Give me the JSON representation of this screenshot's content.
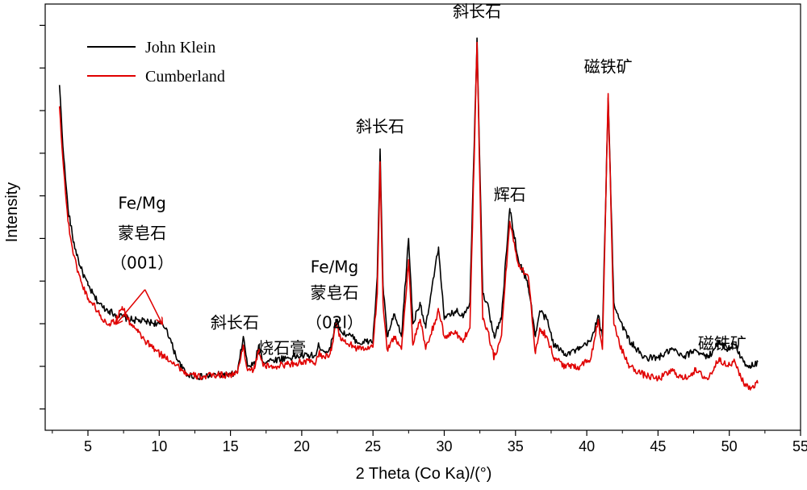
{
  "chart_data": {
    "type": "line",
    "xlabel": "2 Theta (Co Ka)/(°)",
    "ylabel": "Intensity",
    "xlim": [
      2,
      55
    ],
    "ylim": [
      0,
      100
    ],
    "x_ticks": [
      5,
      10,
      15,
      20,
      25,
      30,
      35,
      40,
      45,
      50,
      55
    ],
    "y_axis_tick_labels": "none",
    "grid": false,
    "legend_position": "top-left",
    "series": [
      {
        "name": "John Klein",
        "color": "#000000",
        "points": [
          [
            3.0,
            81
          ],
          [
            3.3,
            64
          ],
          [
            3.6,
            52
          ],
          [
            4.0,
            44
          ],
          [
            4.5,
            38
          ],
          [
            5.0,
            34
          ],
          [
            5.5,
            31
          ],
          [
            6.0,
            29
          ],
          [
            6.5,
            28
          ],
          [
            7.0,
            27
          ],
          [
            8.0,
            26
          ],
          [
            9.0,
            25.5
          ],
          [
            10.0,
            25
          ],
          [
            10.5,
            24
          ],
          [
            11.0,
            19
          ],
          [
            11.5,
            15
          ],
          [
            12.0,
            13
          ],
          [
            13.0,
            12.5
          ],
          [
            14.0,
            13
          ],
          [
            15.0,
            13
          ],
          [
            15.5,
            13.5
          ],
          [
            15.9,
            22
          ],
          [
            16.2,
            15
          ],
          [
            16.7,
            15.5
          ],
          [
            17.0,
            20
          ],
          [
            17.3,
            16
          ],
          [
            18.0,
            16.5
          ],
          [
            19.0,
            17
          ],
          [
            20.0,
            17.5
          ],
          [
            21.0,
            17.5
          ],
          [
            21.2,
            20
          ],
          [
            21.6,
            18.5
          ],
          [
            22.0,
            19
          ],
          [
            22.4,
            26
          ],
          [
            22.8,
            23
          ],
          [
            23.5,
            22
          ],
          [
            24.0,
            20.5
          ],
          [
            25.0,
            21
          ],
          [
            25.3,
            36
          ],
          [
            25.5,
            66
          ],
          [
            25.7,
            34
          ],
          [
            26.0,
            22
          ],
          [
            26.5,
            27
          ],
          [
            27.0,
            22
          ],
          [
            27.5,
            45
          ],
          [
            27.8,
            25
          ],
          [
            28.3,
            30
          ],
          [
            28.7,
            24
          ],
          [
            29.6,
            43
          ],
          [
            30.0,
            26
          ],
          [
            30.8,
            28
          ],
          [
            31.3,
            27
          ],
          [
            31.8,
            30
          ],
          [
            32.3,
            92
          ],
          [
            32.7,
            32
          ],
          [
            33.0,
            30
          ],
          [
            33.5,
            22
          ],
          [
            34.0,
            26
          ],
          [
            34.6,
            52
          ],
          [
            35.2,
            40
          ],
          [
            35.9,
            34
          ],
          [
            36.4,
            22
          ],
          [
            36.7,
            28
          ],
          [
            37.2,
            26
          ],
          [
            37.7,
            20
          ],
          [
            38.5,
            18
          ],
          [
            39.5,
            19
          ],
          [
            40.3,
            21
          ],
          [
            40.8,
            27
          ],
          [
            41.1,
            22
          ],
          [
            41.5,
            78
          ],
          [
            41.9,
            30
          ],
          [
            42.3,
            26
          ],
          [
            43.0,
            21
          ],
          [
            44.0,
            17
          ],
          [
            45.0,
            17
          ],
          [
            46.0,
            19
          ],
          [
            46.8,
            17
          ],
          [
            47.6,
            19
          ],
          [
            48.5,
            17
          ],
          [
            49.3,
            21
          ],
          [
            49.8,
            19
          ],
          [
            50.4,
            20
          ],
          [
            51.0,
            16
          ],
          [
            51.5,
            15
          ],
          [
            52.0,
            16
          ]
        ]
      },
      {
        "name": "Cumberland",
        "color": "#e00000",
        "points": [
          [
            3.0,
            76
          ],
          [
            3.3,
            61
          ],
          [
            3.6,
            49
          ],
          [
            4.0,
            41
          ],
          [
            4.5,
            35
          ],
          [
            5.0,
            31
          ],
          [
            5.5,
            29
          ],
          [
            6.0,
            26
          ],
          [
            6.5,
            25
          ],
          [
            7.0,
            26
          ],
          [
            7.4,
            29
          ],
          [
            7.8,
            26
          ],
          [
            8.5,
            23
          ],
          [
            9.0,
            21
          ],
          [
            10.0,
            18
          ],
          [
            11.0,
            16
          ],
          [
            12.0,
            13
          ],
          [
            13.0,
            12.5
          ],
          [
            14.0,
            13
          ],
          [
            15.0,
            13
          ],
          [
            15.5,
            13.5
          ],
          [
            15.9,
            20
          ],
          [
            16.2,
            14
          ],
          [
            16.7,
            14.5
          ],
          [
            17.0,
            19
          ],
          [
            17.3,
            15
          ],
          [
            18.0,
            15
          ],
          [
            19.0,
            15.5
          ],
          [
            20.0,
            16
          ],
          [
            21.0,
            16
          ],
          [
            21.2,
            18
          ],
          [
            21.6,
            17
          ],
          [
            22.0,
            18
          ],
          [
            22.4,
            25
          ],
          [
            22.8,
            21
          ],
          [
            23.5,
            20
          ],
          [
            24.0,
            19
          ],
          [
            25.0,
            19.5
          ],
          [
            25.3,
            32
          ],
          [
            25.5,
            63
          ],
          [
            25.7,
            30
          ],
          [
            26.0,
            19
          ],
          [
            26.5,
            22
          ],
          [
            27.0,
            19
          ],
          [
            27.5,
            40
          ],
          [
            27.8,
            20
          ],
          [
            28.3,
            26
          ],
          [
            28.7,
            19
          ],
          [
            29.6,
            28
          ],
          [
            30.0,
            22
          ],
          [
            30.8,
            23
          ],
          [
            31.3,
            21
          ],
          [
            31.8,
            24
          ],
          [
            32.3,
            91
          ],
          [
            32.7,
            26
          ],
          [
            33.0,
            24
          ],
          [
            33.5,
            17
          ],
          [
            34.0,
            22
          ],
          [
            34.6,
            49
          ],
          [
            35.2,
            39
          ],
          [
            35.9,
            36
          ],
          [
            36.4,
            18
          ],
          [
            36.7,
            24
          ],
          [
            37.2,
            22
          ],
          [
            37.7,
            17
          ],
          [
            38.5,
            15
          ],
          [
            39.5,
            15
          ],
          [
            40.3,
            17
          ],
          [
            40.8,
            26
          ],
          [
            41.1,
            19
          ],
          [
            41.5,
            79
          ],
          [
            41.9,
            25
          ],
          [
            42.3,
            20
          ],
          [
            43.0,
            15
          ],
          [
            44.0,
            13
          ],
          [
            45.0,
            12
          ],
          [
            46.0,
            14
          ],
          [
            46.8,
            12
          ],
          [
            47.6,
            14
          ],
          [
            48.5,
            12
          ],
          [
            49.3,
            17
          ],
          [
            49.8,
            15
          ],
          [
            50.4,
            16
          ],
          [
            51.0,
            11
          ],
          [
            51.5,
            10
          ],
          [
            52.0,
            11
          ]
        ]
      }
    ],
    "annotations": [
      {
        "text": "斜长石",
        "x": 32.3,
        "y": 97
      },
      {
        "text": "磁铁矿",
        "x": 41.5,
        "y": 84
      },
      {
        "text": "斜长石",
        "x": 25.5,
        "y": 70
      },
      {
        "text": "辉石",
        "x": 34.6,
        "y": 54
      },
      {
        "text": "Fe/Mg",
        "x": 8.8,
        "y": 52
      },
      {
        "text": "蒙皂石",
        "x": 8.8,
        "y": 45
      },
      {
        "text": "（001）",
        "x": 8.8,
        "y": 38
      },
      {
        "text": "Fe/Mg",
        "x": 22.3,
        "y": 37
      },
      {
        "text": "蒙皂石",
        "x": 22.3,
        "y": 31
      },
      {
        "text": "（02l）",
        "x": 22.3,
        "y": 24
      },
      {
        "text": "斜长石",
        "x": 15.3,
        "y": 24
      },
      {
        "text": "烧石膏",
        "x": 18.6,
        "y": 18
      },
      {
        "text": "磁铁矿",
        "x": 49.5,
        "y": 19
      }
    ],
    "pointer_arrows": [
      {
        "from": [
          9.0,
          33
        ],
        "to": [
          7.0,
          25
        ]
      },
      {
        "from": [
          9.0,
          33
        ],
        "to": [
          10.2,
          25
        ]
      }
    ]
  }
}
